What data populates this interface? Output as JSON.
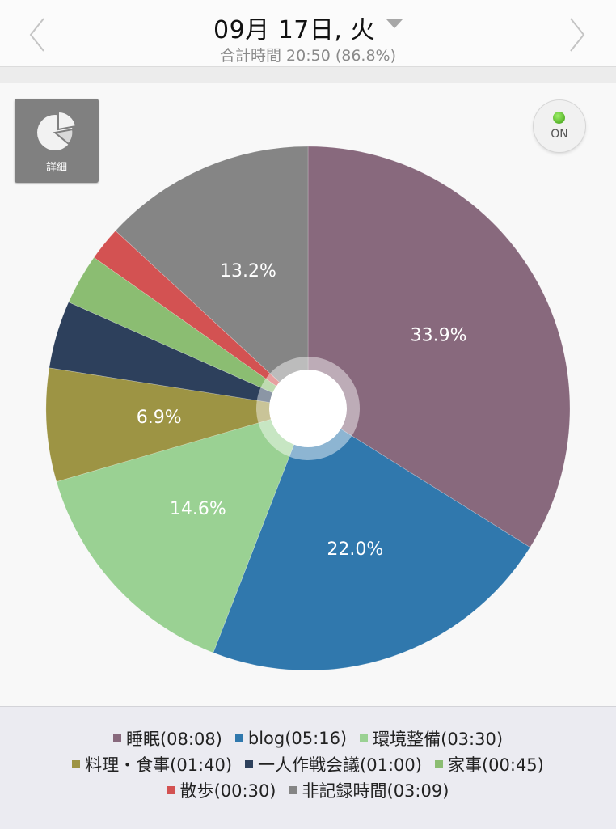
{
  "header": {
    "date": "09月 17日, 火",
    "total": "合計時間 20:50 (86.8%)"
  },
  "controls": {
    "detail_label": "詳細",
    "toggle_label": "ON"
  },
  "chart_data": {
    "type": "pie",
    "slices": [
      {
        "name": "睡眠",
        "time": "08:08",
        "value": 32.5,
        "label": "33.9%",
        "color": "#88697d"
      },
      {
        "name": "blog",
        "time": "05:16",
        "value": 21.1,
        "label": "22.0%",
        "color": "#3078ad"
      },
      {
        "name": "環境整備",
        "time": "03:30",
        "value": 14.0,
        "label": "14.6%",
        "color": "#9ad193"
      },
      {
        "name": "料理・食事",
        "time": "01:40",
        "value": 6.7,
        "label": "6.9%",
        "color": "#9d9444"
      },
      {
        "name": "一人作戦会議",
        "time": "01:00",
        "value": 4.0,
        "label": "",
        "color": "#2d405c"
      },
      {
        "name": "家事",
        "time": "00:45",
        "value": 3.0,
        "label": "",
        "color": "#8bbd72"
      },
      {
        "name": "散歩",
        "time": "00:30",
        "value": 2.0,
        "label": "",
        "color": "#d35252"
      },
      {
        "name": "非記録時間",
        "time": "03:09",
        "value": 12.6,
        "label": "13.2%",
        "color": "#858585"
      }
    ],
    "legend": {
      "rows": [
        [
          "睡眠(08:08)",
          "blog(05:16)",
          "環境整備(03:30)"
        ],
        [
          "料理・食事(01:40)",
          "一人作戦会議(01:00)",
          "家事(00:45)"
        ],
        [
          "散歩(00:30)",
          "非記録時間(03:09)"
        ]
      ]
    }
  }
}
